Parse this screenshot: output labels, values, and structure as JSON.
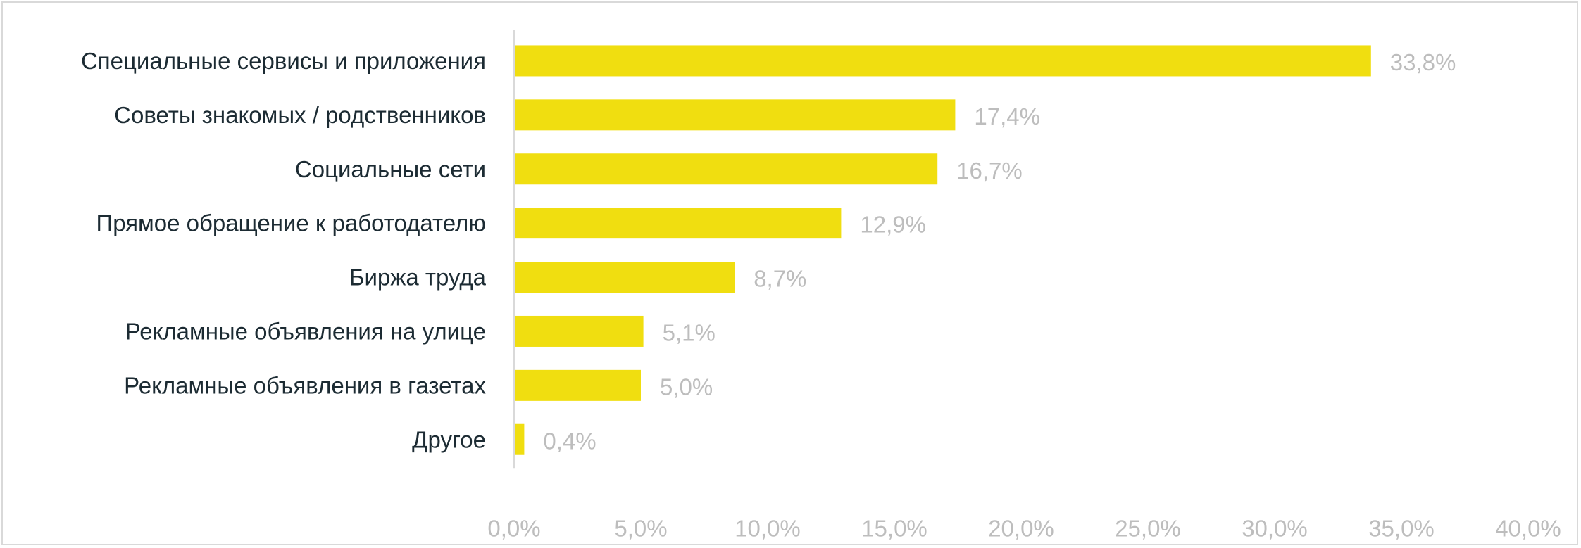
{
  "chart_data": {
    "type": "bar",
    "orientation": "horizontal",
    "categories": [
      "Специальные сервисы и приложения",
      "Советы знакомых / родственников",
      "Социальные сети",
      "Прямое обращение к работодателю",
      "Биржа труда",
      "Рекламные объявления на улице",
      "Рекламные объявления в газетах",
      "Другое"
    ],
    "values": [
      33.8,
      17.4,
      16.7,
      12.9,
      8.7,
      5.1,
      5.0,
      0.4
    ],
    "value_labels": [
      "33,8%",
      "17,4%",
      "16,7%",
      "12,9%",
      "8,7%",
      "5,1%",
      "5,0%",
      "0,4%"
    ],
    "xlim": [
      0,
      40
    ],
    "x_ticks": [
      0,
      5,
      10,
      15,
      20,
      25,
      30,
      35,
      40
    ],
    "x_tick_labels": [
      "0,0%",
      "5,0%",
      "10,0%",
      "15,0%",
      "20,0%",
      "25,0%",
      "30,0%",
      "35,0%",
      "40,0%"
    ],
    "title": "",
    "xlabel": "",
    "ylabel": "",
    "grid": false,
    "legend": "none",
    "colors": {
      "bar": "#f0de10",
      "category_text": "#1c2b33",
      "value_text": "#bdbdbd",
      "axis_line": "#d9d9d9",
      "frame": "#d9d9d9"
    }
  }
}
